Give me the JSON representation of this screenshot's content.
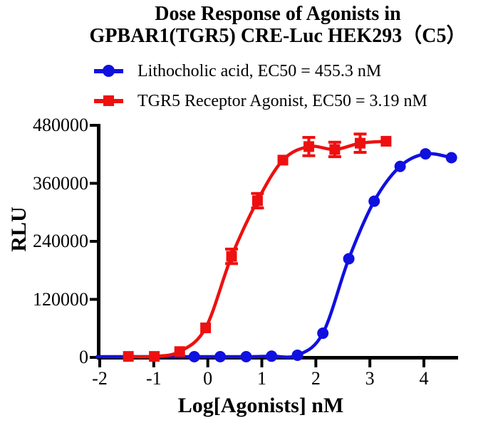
{
  "title": {
    "line1": "Dose Response of Agonists in",
    "line2": "GPBAR1(TGR5) CRE-Luc HEK293（C5）"
  },
  "chart_data": {
    "type": "line",
    "title": "Dose Response of Agonists in GPBAR1(TGR5) CRE-Luc HEK293（C5）",
    "xlabel": "Log[Agonists] nM",
    "ylabel": "RLU",
    "xlim": [
      -2,
      4.65
    ],
    "ylim": [
      0,
      480000
    ],
    "x_ticks": [
      -2,
      -1,
      0,
      1,
      2,
      3,
      4
    ],
    "y_ticks": [
      0,
      120000,
      240000,
      360000,
      480000
    ],
    "grid": false,
    "legend_position": "top",
    "series": [
      {
        "name": "Lithocholic acid",
        "legend_label": "Lithocholic acid, EC50 = 455.3 nM",
        "ec50_nm": 455.3,
        "color": "#1010e0",
        "marker": "circle",
        "curve_start_log": -2.05,
        "x": [
          -0.25,
          0.23,
          0.71,
          1.18,
          1.66,
          2.13,
          2.61,
          3.08,
          3.56,
          4.03,
          4.51
        ],
        "y": [
          1500,
          1500,
          1500,
          2500,
          4500,
          50000,
          204000,
          323000,
          395000,
          421000,
          413000
        ],
        "y_err": [
          0,
          0,
          0,
          0,
          0,
          0,
          0,
          0,
          0,
          0,
          0
        ]
      },
      {
        "name": "TGR5 Receptor Agonist",
        "legend_label": "TGR5 Receptor Agonist, EC50 = 3.19 nM",
        "ec50_nm": 3.19,
        "color": "#ee1010",
        "marker": "square",
        "curve_start_log": null,
        "x": [
          -1.47,
          -0.99,
          -0.52,
          -0.04,
          0.44,
          0.92,
          1.39,
          1.87,
          2.35,
          2.82,
          3.3
        ],
        "y": [
          2000,
          2000,
          12000,
          61000,
          209000,
          324000,
          408000,
          436000,
          430000,
          443000,
          447000
        ],
        "y_err": [
          0,
          0,
          0,
          0,
          15000,
          15000,
          0,
          19000,
          15000,
          19000,
          0
        ]
      }
    ]
  }
}
